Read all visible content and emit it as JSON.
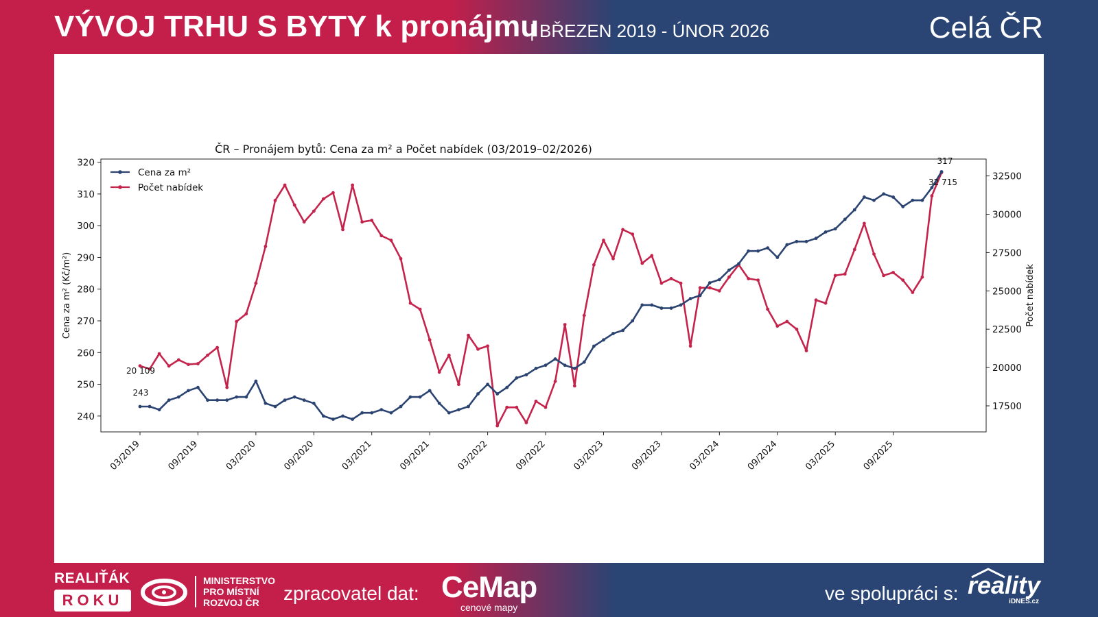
{
  "header": {
    "title": "VÝVOJ TRHU S BYTY k pronájmu",
    "subtitle": "| BŘEZEN 2019 - ÚNOR 2026",
    "region": "Celá ČR"
  },
  "footer": {
    "realitak_top": "REALIŤÁK",
    "realitak_bottom": "ROKU",
    "ministry_line1": "MINISTERSTVO",
    "ministry_line2": "PRO MÍSTNÍ",
    "ministry_line3": "ROZVOJ ČR",
    "processor_label": "zpracovatel dat:",
    "cemap_name": "CeMap",
    "cemap_sub": "cenové mapy",
    "partner_label": "ve spolupráci s:",
    "partner_name": "reality",
    "partner_sub": "iDNES.cz"
  },
  "colors": {
    "price": "#2b4370",
    "offers": "#c4244c",
    "brand_red": "#c41e4a",
    "brand_blue": "#2a4474"
  },
  "chart_data": {
    "type": "line",
    "title": "ČR – Pronájem bytů: Cena za m² a Počet nabídek (03/2019–02/2026)",
    "xlabel": "",
    "ylabel_left": "Cena za m² (Kč/m²)",
    "ylabel_right": "Počet nabídek",
    "ylim_left": [
      235,
      321
    ],
    "yticks_left": [
      240,
      250,
      260,
      270,
      280,
      290,
      300,
      310,
      320
    ],
    "ylim_right": [
      15800,
      33600
    ],
    "yticks_right": [
      17500,
      20000,
      22500,
      25000,
      27500,
      30000,
      32500
    ],
    "x_tick_labels": [
      "03/2019",
      "09/2019",
      "03/2020",
      "09/2020",
      "03/2021",
      "09/2021",
      "03/2022",
      "09/2022",
      "03/2023",
      "09/2023",
      "03/2024",
      "09/2024",
      "03/2025",
      "09/2025"
    ],
    "x_tick_indices": [
      0,
      6,
      12,
      18,
      24,
      30,
      36,
      42,
      48,
      54,
      60,
      66,
      72,
      78
    ],
    "legend": [
      "Cena za m²",
      "Počet nabídek"
    ],
    "legend_position": "top-left",
    "series": [
      {
        "name": "Cena za m²",
        "axis": "left",
        "values": [
          243,
          243,
          242,
          245,
          246,
          248,
          249,
          245,
          245,
          245,
          246,
          246,
          251,
          244,
          243,
          245,
          246,
          245,
          244,
          240,
          239,
          240,
          239,
          241,
          241,
          242,
          241,
          243,
          246,
          246,
          248,
          244,
          241,
          242,
          243,
          247,
          250,
          247,
          249,
          252,
          253,
          255,
          256,
          258,
          256,
          255,
          257,
          262,
          264,
          266,
          267,
          270,
          275,
          275,
          274,
          274,
          275,
          277,
          278,
          282,
          283,
          286,
          288,
          292,
          292,
          293,
          290,
          294,
          295,
          295,
          296,
          298,
          299,
          302,
          305,
          309,
          308,
          310,
          309,
          306,
          308,
          308,
          312,
          317
        ]
      },
      {
        "name": "Počet nabídek",
        "axis": "right",
        "values": [
          20109,
          19900,
          20900,
          20100,
          20500,
          20200,
          20250,
          20800,
          21300,
          18700,
          23000,
          23500,
          25500,
          27900,
          30900,
          31900,
          30600,
          29500,
          30200,
          31000,
          31400,
          29000,
          31900,
          29500,
          29600,
          28600,
          28300,
          27100,
          24200,
          23800,
          21800,
          19700,
          20800,
          18900,
          22100,
          21200,
          21400,
          16200,
          17400,
          17400,
          16400,
          17800,
          17400,
          19100,
          22800,
          18800,
          23400,
          26700,
          28300,
          27100,
          29000,
          28700,
          26800,
          27300,
          25500,
          25800,
          25500,
          21400,
          25200,
          25200,
          25000,
          25900,
          26700,
          25800,
          25700,
          23800,
          22700,
          23000,
          22500,
          21100,
          24400,
          24200,
          26000,
          26100,
          27700,
          29400,
          27400,
          26000,
          26200,
          25700,
          24900,
          25900,
          31200,
          32715
        ]
      }
    ],
    "annotations": [
      "243",
      "20 109",
      "317",
      "32 715"
    ]
  }
}
